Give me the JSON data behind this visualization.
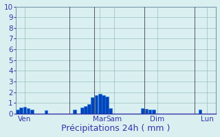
{
  "title": "",
  "xlabel": "Précipitations 24h ( mm )",
  "background_color": "#daf0f0",
  "bar_color_dark": "#0044bb",
  "bar_color_light": "#2277dd",
  "ylim": [
    0,
    10
  ],
  "yticks": [
    0,
    1,
    2,
    3,
    4,
    5,
    6,
    7,
    8,
    9,
    10
  ],
  "grid_color": "#99bbbb",
  "bar_values": [
    0.4,
    0.55,
    0.65,
    0.5,
    0.35,
    0.0,
    0.0,
    0.0,
    0.3,
    0.0,
    0.0,
    0.0,
    0.0,
    0.0,
    0.0,
    0.0,
    0.35,
    0.0,
    0.6,
    0.7,
    0.9,
    1.5,
    1.7,
    1.85,
    1.75,
    1.6,
    0.5,
    0.0,
    0.0,
    0.0,
    0.0,
    0.0,
    0.0,
    0.0,
    0.0,
    0.5,
    0.45,
    0.4,
    0.35,
    0.0,
    0.0,
    0.0,
    0.0,
    0.0,
    0.0,
    0.0,
    0.0,
    0.0,
    0.0,
    0.0,
    0.0,
    0.4,
    0.0,
    0.0,
    0.0,
    0.0
  ],
  "day_labels": [
    "Ven",
    "Mar",
    "Sam",
    "Dim",
    "Lun"
  ],
  "day_tick_positions": [
    2,
    23,
    27,
    39,
    53
  ],
  "vline_positions": [
    14.5,
    21.5,
    35.5,
    49.5
  ],
  "xlabel_fontsize": 9,
  "ytick_fontsize": 7.5,
  "xtick_fontsize": 7.5
}
